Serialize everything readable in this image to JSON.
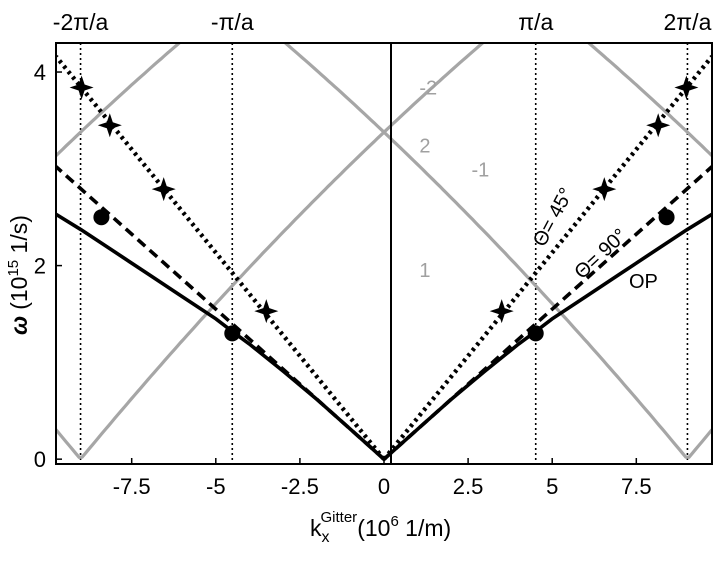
{
  "chart_data": {
    "type": "line",
    "xlabel": {
      "main": "k",
      "sub": "x",
      "sup": "Gitter",
      "rest": "(10",
      "rest_sup": "6",
      "rest_end": " 1/m)"
    },
    "ylabel": {
      "sym": "ω",
      "open": "(10",
      "sup": "15",
      "rest": " 1/s)"
    },
    "xlim": [
      -9.75,
      9.75
    ],
    "ylim": [
      -0.05,
      4.3
    ],
    "x_ticks": [
      {
        "v": -7.5,
        "label": "-7.5"
      },
      {
        "v": -5,
        "label": "-5"
      },
      {
        "v": -2.5,
        "label": "-2.5"
      },
      {
        "v": 0,
        "label": "0"
      },
      {
        "v": 2.5,
        "label": "2.5"
      },
      {
        "v": 5,
        "label": "5"
      },
      {
        "v": 7.5,
        "label": "7.5"
      }
    ],
    "y_ticks": [
      {
        "v": 0,
        "label": "0"
      },
      {
        "v": 2,
        "label": "2"
      },
      {
        "v": 4,
        "label": "4"
      }
    ],
    "top_ticks": [
      {
        "v": -9.02,
        "label": "-2π/a"
      },
      {
        "v": -4.51,
        "label": "-π/a"
      },
      {
        "v": 4.51,
        "label": "π/a"
      },
      {
        "v": 9.02,
        "label": "2π/a"
      }
    ],
    "bragg_lines_x": [
      -9.02,
      -4.51,
      4.51,
      9.02
    ],
    "lattice_G": 9.02,
    "light_line_slope": 0.42,
    "diffraction_orders": [
      {
        "label": "1",
        "order": 1,
        "label_at": [
          1.05,
          1.88
        ]
      },
      {
        "label": "-1",
        "order": -1,
        "label_at": [
          2.6,
          2.92
        ]
      },
      {
        "label": "2",
        "order": 2,
        "label_at": [
          1.05,
          3.17
        ]
      },
      {
        "label": "-2",
        "order": -2,
        "label_at": [
          1.05,
          3.77
        ]
      }
    ],
    "theta_45_label": "Θ= 45°",
    "theta_90_label": "Θ= 90°",
    "op_label": "OP",
    "surface_plasmon": {
      "label": "OP",
      "x": [
        -9.75,
        -9,
        -8,
        -7,
        -6,
        -5,
        -4.51,
        -4,
        -3,
        -2,
        -1,
        0,
        1,
        2,
        3,
        4,
        4.51,
        5,
        6,
        7,
        8,
        9,
        9.75
      ],
      "y": [
        2.53,
        2.37,
        2.14,
        1.91,
        1.68,
        1.45,
        1.32,
        1.19,
        0.91,
        0.62,
        0.31,
        0,
        0.31,
        0.62,
        0.91,
        1.19,
        1.32,
        1.45,
        1.68,
        1.91,
        2.14,
        2.37,
        2.53
      ]
    },
    "theta_45_points": [
      {
        "x": -8.99,
        "y": 3.84
      },
      {
        "x": -8.15,
        "y": 3.45
      },
      {
        "x": -6.55,
        "y": 2.79
      },
      {
        "x": -3.5,
        "y": 1.53
      },
      {
        "x": 3.5,
        "y": 1.53
      },
      {
        "x": 6.55,
        "y": 2.79
      },
      {
        "x": 8.15,
        "y": 3.45
      },
      {
        "x": 8.99,
        "y": 3.84
      }
    ],
    "theta_90_points": [
      {
        "x": -8.4,
        "y": 2.5
      },
      {
        "x": -4.51,
        "y": 1.3
      },
      {
        "x": 4.51,
        "y": 1.3
      },
      {
        "x": 8.4,
        "y": 2.5
      }
    ],
    "colors": {
      "diffraction": "#a6a6a6",
      "plasmon": "#000000",
      "bragg": "#000000",
      "markers": "#000000"
    }
  }
}
